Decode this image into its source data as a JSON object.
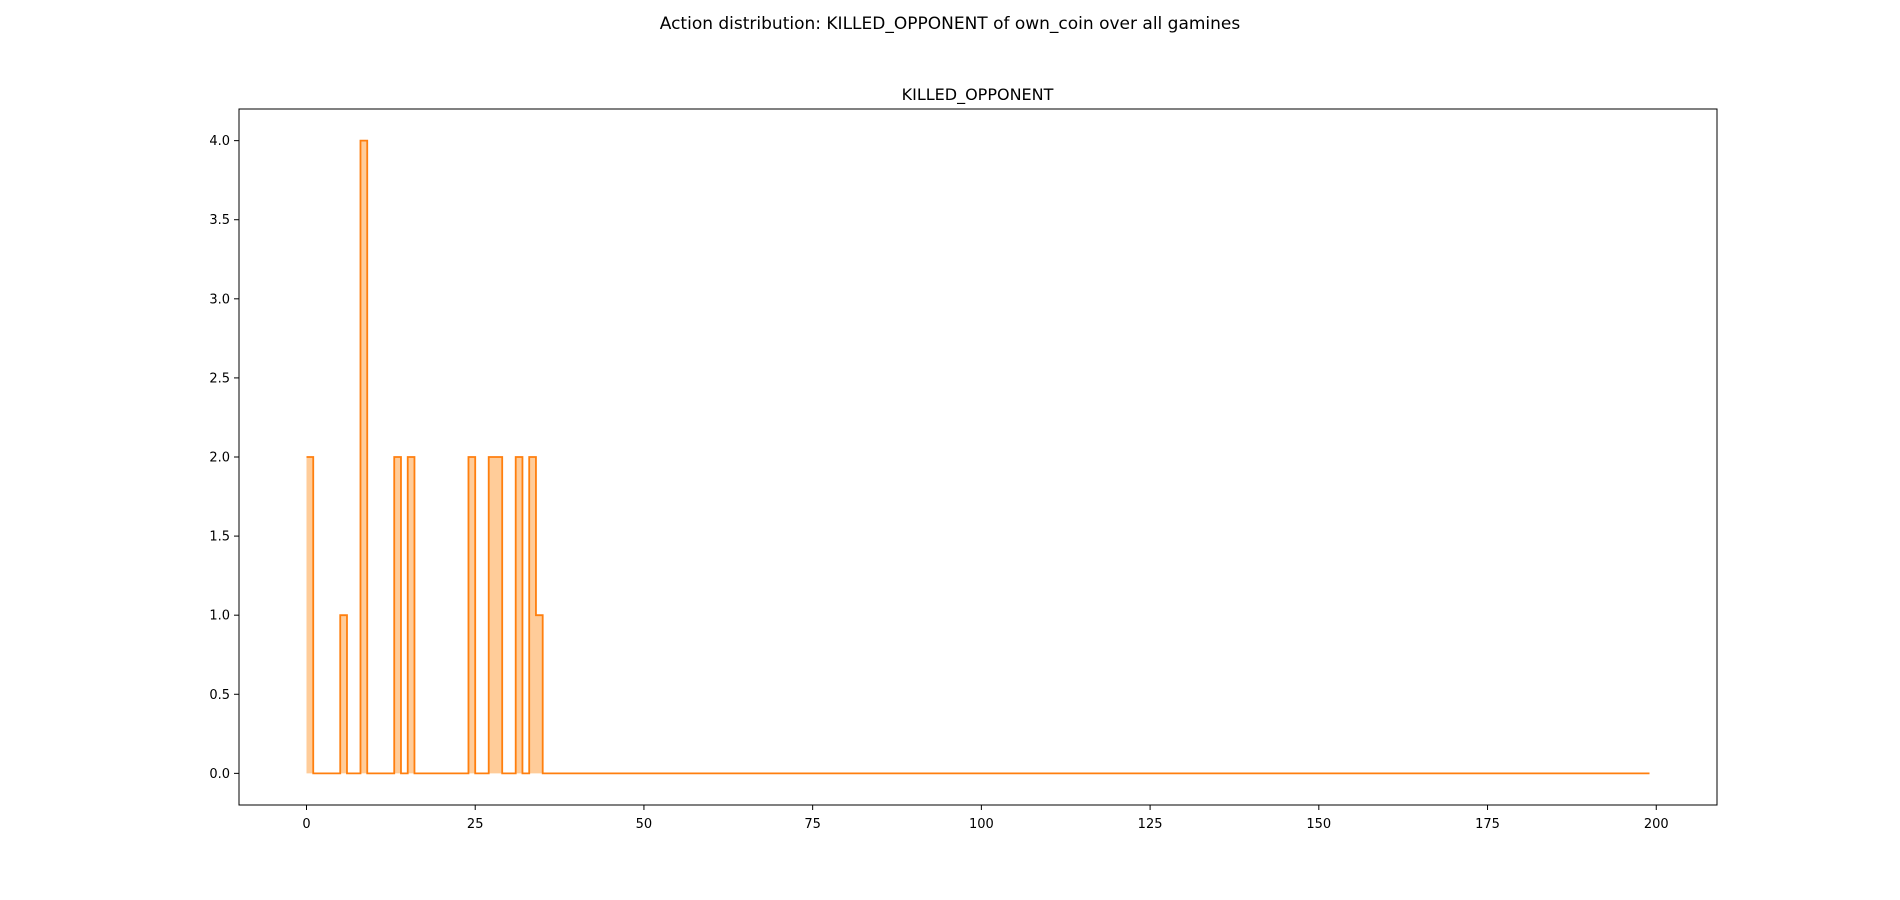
{
  "figure": {
    "suptitle": "Action distribution: KILLED_OPPONENT of own_coin over all gamines"
  },
  "chart_data": {
    "type": "area",
    "step": "post",
    "title": "KILLED_OPPONENT",
    "xlabel": "",
    "ylabel": "",
    "xlim": [
      -10,
      209
    ],
    "ylim": [
      -0.2,
      4.2
    ],
    "xticks": [
      0,
      25,
      50,
      75,
      100,
      125,
      150,
      175,
      200
    ],
    "yticks": [
      0.0,
      0.5,
      1.0,
      1.5,
      2.0,
      2.5,
      3.0,
      3.5,
      4.0
    ],
    "ytick_labels": [
      "0.0",
      "0.5",
      "1.0",
      "1.5",
      "2.0",
      "2.5",
      "3.0",
      "3.5",
      "4.0"
    ],
    "grid": false,
    "x_start": 0,
    "x_end": 199,
    "series": [
      {
        "color": "#ff7f0e",
        "fill_color": "#ffcc99",
        "values": [
          2,
          0,
          0,
          0,
          0,
          1,
          0,
          0,
          4,
          0,
          0,
          0,
          0,
          2,
          0,
          2,
          0,
          0,
          0,
          0,
          0,
          0,
          0,
          0,
          2,
          0,
          0,
          2,
          2,
          0,
          0,
          2,
          0,
          2,
          1
        ]
      }
    ]
  }
}
